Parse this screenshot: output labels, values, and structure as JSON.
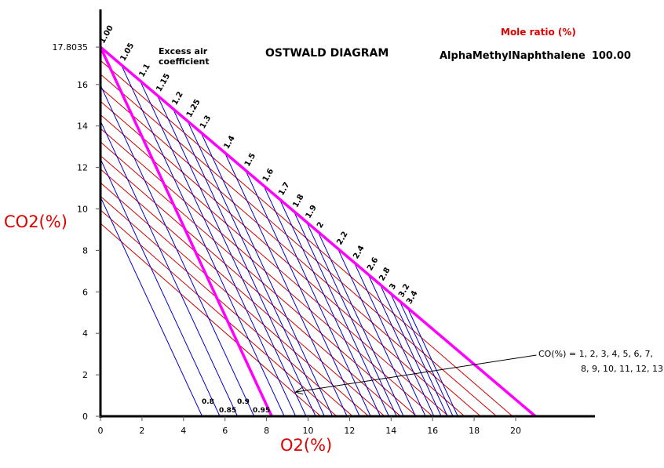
{
  "chart_data": {
    "type": "line",
    "title": "OSTWALD DIAGRAM",
    "xlabel": "O2(%)",
    "ylabel": "CO2(%)",
    "xlim": [
      0,
      23.5
    ],
    "ylim": [
      0,
      19.5
    ],
    "xticks": [
      "0",
      "2",
      "4",
      "6",
      "8",
      "10",
      "12",
      "14",
      "16",
      "18",
      "20"
    ],
    "yticks": [
      "0",
      "2",
      "4",
      "6",
      "8",
      "10",
      "12",
      "14",
      "16"
    ],
    "ymax_label": "17.8035",
    "co2_max": 17.8035,
    "o2_air": 20.95,
    "stoich_line_o2_intercept": 8.25,
    "excess_air_title": "Excess air coefficient",
    "lambda_rich": [
      {
        "label": "0.8",
        "o2_intercept": 4.9
      },
      {
        "label": "0.85",
        "o2_intercept": 5.75
      },
      {
        "label": "0.9",
        "o2_intercept": 6.6
      },
      {
        "label": "0.95",
        "o2_intercept": 7.4
      }
    ],
    "lambda_lean": [
      "1.00",
      "1.05",
      "1.1",
      "1.15",
      "1.2",
      "1.25",
      "1.3",
      "1.4",
      "1.5",
      "1.6",
      "1.7",
      "1.8",
      "1.9",
      "2",
      "2.2",
      "2.4",
      "2.6",
      "2.8",
      "3",
      "3.2",
      "3.4"
    ],
    "co_lines": {
      "values": [
        1,
        2,
        3,
        4,
        5,
        6,
        7,
        8,
        9,
        10,
        11,
        12,
        13
      ],
      "co2_intercepts": [
        17.16,
        16.5,
        15.85,
        15.19,
        14.54,
        13.88,
        13.23,
        12.57,
        11.92,
        11.26,
        10.61,
        9.95,
        9.3
      ],
      "o2_intercepts": [
        19.85,
        19.08,
        18.31,
        17.54,
        16.77,
        16.0,
        15.23,
        14.46,
        13.69,
        12.92,
        12.15,
        11.38,
        10.61
      ]
    },
    "annotation_line1": "CO(%) = 1, 2, 3, 4, 5, 6, 7,",
    "annotation_line2": "8, 9, 10, 11, 12, 13",
    "annotation_from": [
      21.0,
      2.95
    ],
    "annotation_to": [
      9.4,
      1.17
    ],
    "mole_ratio_title": "Mole ratio (%)",
    "fuel_name": "AlphaMethylNaphthalene",
    "fuel_ratio": "100.00",
    "colors": {
      "boundary": "#ff00ff",
      "lambda": "#0000cc",
      "co": "#cc0000",
      "label_red": "#e00000"
    }
  }
}
